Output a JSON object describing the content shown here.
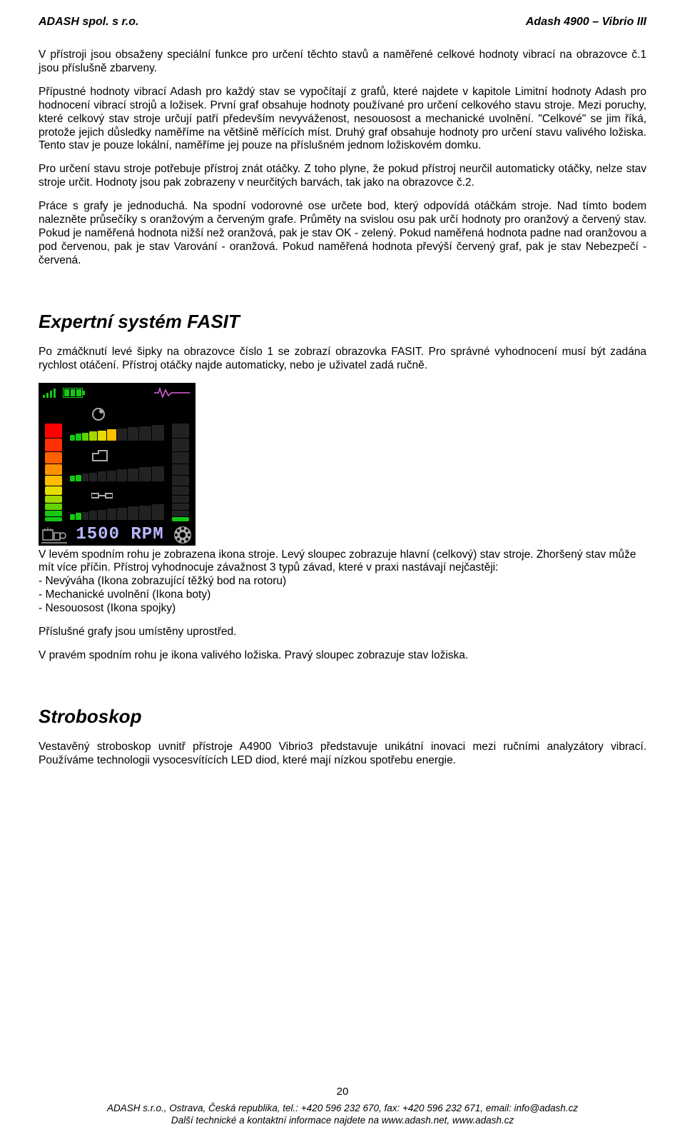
{
  "header": {
    "left": "ADASH spol. s r.o.",
    "right": "Adash 4900 – Vibrio III"
  },
  "paragraphs": {
    "p1": "V přístroji jsou obsaženy speciální funkce pro určení těchto stavů a naměřené celkové hodnoty vibrací na obrazovce č.1 jsou příslušně zbarveny.",
    "p2": "Přípustné hodnoty vibrací Adash pro každý stav se vypočítají z grafů, které najdete v kapitole Limitní hodnoty Adash pro hodnocení vibrací strojů a ložisek. První graf obsahuje hodnoty používané pro určení celkového stavu stroje. Mezi poruchy, které celkový stav stroje určují patří především nevyváženost, nesouosost a mechanické uvolnění. \"Celkové\" se jim říká, protože jejich důsledky naměříme na většině měřících míst. Druhý graf obsahuje hodnoty pro určení stavu valivého ložiska. Tento stav je pouze lokální, naměříme jej pouze na příslušném jednom ložiskovém domku.",
    "p3": "Pro určení stavu stroje potřebuje přístroj znát otáčky. Z toho plyne, že pokud přístroj neurčil automaticky otáčky, nelze stav stroje určit. Hodnoty jsou pak zobrazeny v neurčitých barvách, tak jako na obrazovce č.2.",
    "p4": "Práce s grafy je jednoduchá. Na spodní vodorovné ose určete bod, který odpovídá otáčkám stroje. Nad tímto bodem nalezněte průsečíky s oranžovým a červeným grafe. Průměty na svislou osu pak určí hodnoty pro oranžový a červený stav. Pokud je naměřená hodnota nižší než oranžová, pak je stav OK - zelený. Pokud naměřená hodnota padne nad oranžovou a pod červenou, pak je stav Varování - oranžová. Pokud naměřená hodnota převýší červený graf, pak je stav Nebezpečí - červená."
  },
  "fasit": {
    "heading": "Expertní systém FASIT",
    "intro": "Po zmáčknutí levé šipky na obrazovce číslo 1 se zobrazí obrazovka FASIT. Pro správné vyhodnocení musí být zadána rychlost otáčení. Přístroj otáčky najde automaticky, nebo je uživatel zadá ručně.",
    "rpm_value": "1500",
    "rpm_unit": "RPM",
    "after_image": "V levém spodním rohu je zobrazena ikona stroje. Levý sloupec zobrazuje hlavní (celkový) stav stroje. Zhoršený stav může mít více příčin. Přístroj vyhodnocuje závažnost 3 typů závad, které v praxi nastávají nejčastěji:",
    "fault1": "- Nevýváha (Ikona zobrazující těžký bod na rotoru)",
    "fault2": "- Mechanické uvolnění (Ikona boty)",
    "fault3": "- Nesouosost (Ikona spojky)",
    "after2": "Příslušné grafy jsou umístěny uprostřed.",
    "after3": "V pravém spodním rohu je ikona valivého ložiska. Pravý sloupec zobrazuje stav ložiska.",
    "gauge_colors": [
      "#14c814",
      "#14c814",
      "#62d200",
      "#a5d800",
      "#e6dc00",
      "#ffbe00",
      "#ff9000",
      "#ff6000",
      "#ff3000",
      "#ff0000"
    ],
    "left_gauge_lit": 10,
    "right_gauge_lit": 1,
    "row1_lit": 6,
    "row2_lit": 2,
    "row3_lit": 2
  },
  "strobo": {
    "heading": "Stroboskop",
    "text": "Vestavěný stroboskop uvnitř přístroje A4900 Vibrio3 představuje unikátní inovaci mezi ručními analyzátory vibrací. Používáme technologii vysocesvítících LED diod, které mají nízkou spotřebu energie."
  },
  "footer": {
    "page": "20",
    "line1": "ADASH s.r.o., Ostrava, Česká republika, tel.: +420 596 232 670, fax: +420 596 232 671, email: info@adash.cz",
    "line2": "Další technické a kontaktní informace najdete na www.adash.net, www.adash.cz"
  }
}
